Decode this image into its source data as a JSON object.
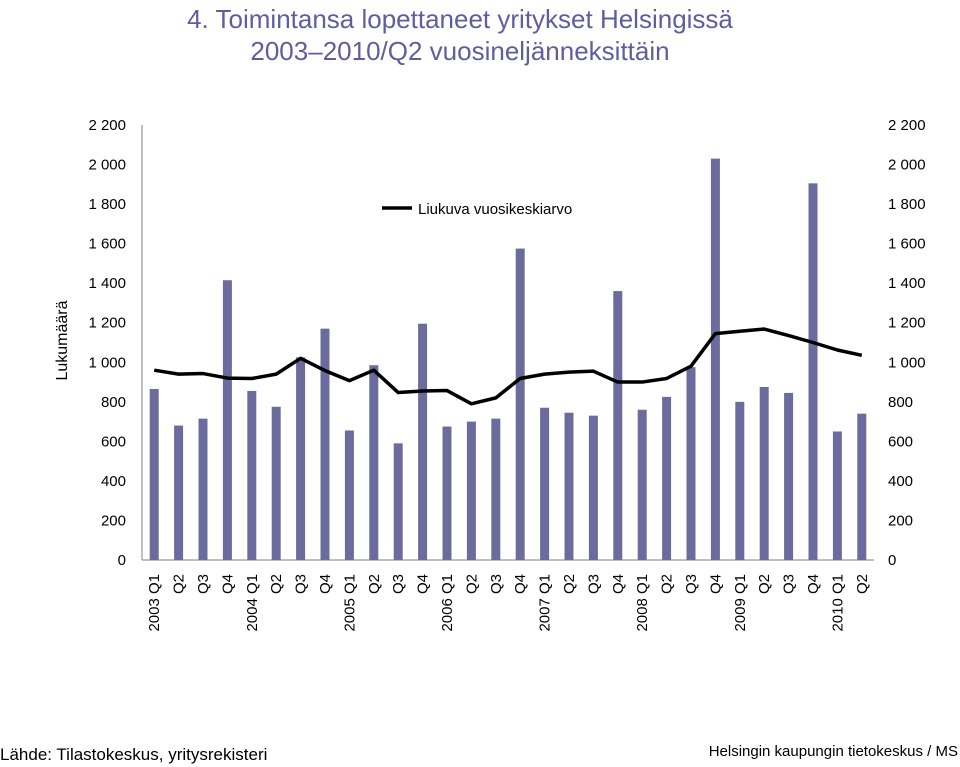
{
  "header": {
    "title_line1": "4. Toimintansa lopettaneet yritykset Helsingissä",
    "title_line2": "2003–2010/Q2 vuosineljänneksittäin"
  },
  "footer": {
    "source": "Lähde: Tilastokeskus, yritysrekisteri",
    "credit": "Helsingin kaupungin tietokeskus / MS"
  },
  "colors": {
    "bar": "#6b6b9e",
    "line": "#000000",
    "title": "#5e5e9e"
  },
  "chart_data": {
    "type": "bar",
    "ylabel": "Lukumäärä",
    "ylim": [
      0,
      2200
    ],
    "yticks": [
      0,
      200,
      400,
      600,
      800,
      1000,
      1200,
      1400,
      1600,
      1800,
      2000,
      2200
    ],
    "ytick_labels": [
      "0",
      "200",
      "400",
      "600",
      "800",
      "1 000",
      "1 200",
      "1 400",
      "1 600",
      "1 800",
      "2 000",
      "2 200"
    ],
    "legend_position": "top-center",
    "categories": [
      "2003 Q1",
      "Q2",
      "Q3",
      "Q4",
      "2004 Q1",
      "Q2",
      "Q3",
      "Q4",
      "2005 Q1",
      "Q2",
      "Q3",
      "Q4",
      "2006 Q1",
      "Q2",
      "Q3",
      "Q4",
      "2007 Q1",
      "Q2",
      "Q3",
      "Q4",
      "2008 Q1",
      "Q2",
      "Q3",
      "Q4",
      "2009 Q1",
      "Q2",
      "Q3",
      "Q4",
      "2010 Q1",
      "Q2"
    ],
    "series": [
      {
        "type": "bar",
        "values": [
          865,
          680,
          715,
          1415,
          855,
          775,
          1025,
          1170,
          655,
          985,
          590,
          1195,
          675,
          700,
          715,
          1575,
          770,
          745,
          730,
          1360,
          760,
          825,
          975,
          2030,
          800,
          875,
          845,
          1905,
          650,
          740
        ]
      },
      {
        "name": "Liukuva vuosikeskiarvo",
        "type": "line",
        "values": [
          960,
          940,
          943,
          920,
          918,
          940,
          1020,
          958,
          907,
          960,
          847,
          855,
          857,
          790,
          820,
          918,
          940,
          950,
          955,
          900,
          900,
          918,
          980,
          1145,
          1157,
          1168,
          1135,
          1100,
          1062,
          1035
        ]
      }
    ]
  }
}
